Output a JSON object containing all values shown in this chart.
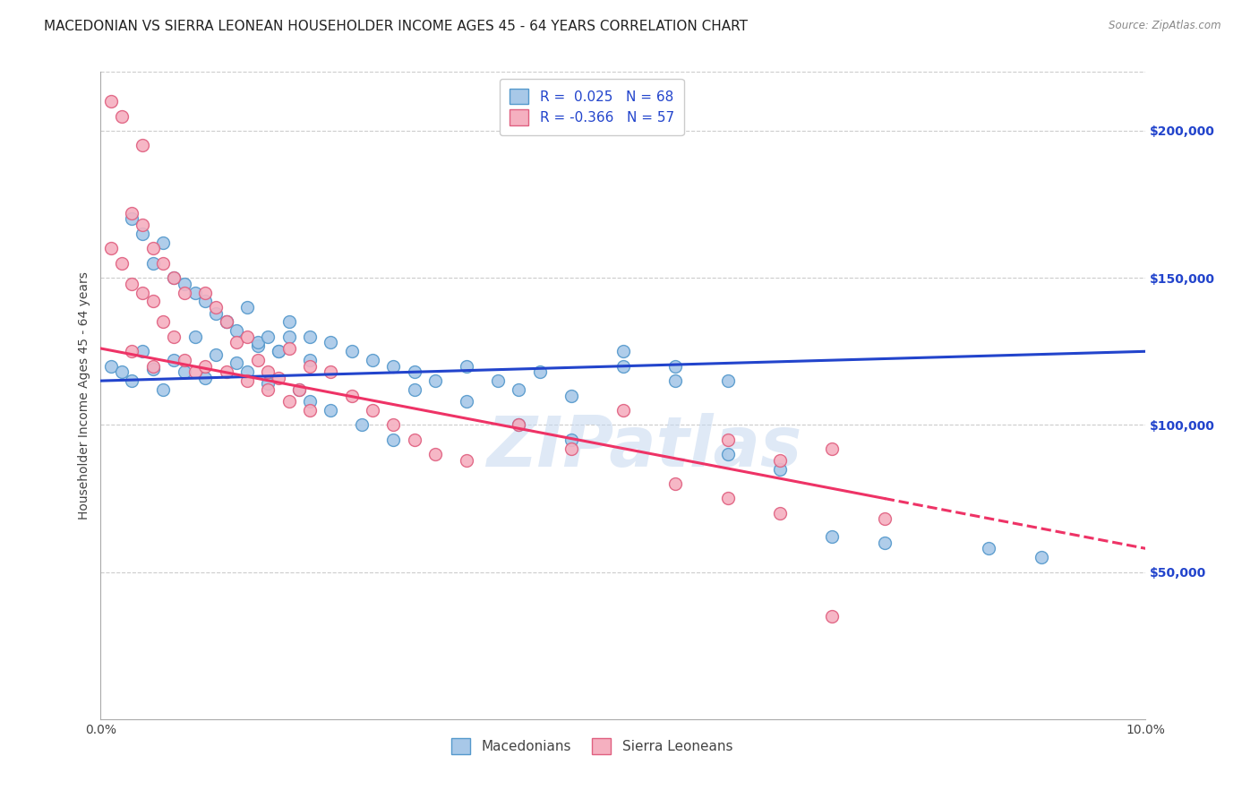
{
  "title": "MACEDONIAN VS SIERRA LEONEAN HOUSEHOLDER INCOME AGES 45 - 64 YEARS CORRELATION CHART",
  "source": "Source: ZipAtlas.com",
  "ylabel": "Householder Income Ages 45 - 64 years",
  "xlim": [
    0.0,
    0.1
  ],
  "ylim": [
    0,
    220000
  ],
  "ytick_vals": [
    50000,
    100000,
    150000,
    200000
  ],
  "ytick_labels": [
    "$50,000",
    "$100,000",
    "$150,000",
    "$200,000"
  ],
  "xticks": [
    0.0,
    0.02,
    0.04,
    0.06,
    0.08,
    0.1
  ],
  "xtick_labels": [
    "0.0%",
    "",
    "",
    "",
    "",
    "10.0%"
  ],
  "background_color": "#ffffff",
  "grid_color": "#cccccc",
  "macedonian_color": "#a8c8e8",
  "macedonian_edge_color": "#5599cc",
  "sierra_color": "#f5b0c0",
  "sierra_edge_color": "#e06080",
  "blue_line_color": "#2244cc",
  "pink_line_color": "#ee3366",
  "legend_color": "#2244cc",
  "watermark": "ZIPatlas",
  "title_fontsize": 11,
  "axis_label_fontsize": 10,
  "tick_fontsize": 10,
  "legend_fontsize": 11,
  "marker_size": 100,
  "line_width": 2.2,
  "macedonian_x": [
    0.001,
    0.002,
    0.003,
    0.004,
    0.005,
    0.006,
    0.007,
    0.008,
    0.009,
    0.01,
    0.011,
    0.012,
    0.013,
    0.014,
    0.015,
    0.016,
    0.017,
    0.018,
    0.019,
    0.02,
    0.003,
    0.004,
    0.005,
    0.006,
    0.007,
    0.008,
    0.009,
    0.01,
    0.011,
    0.012,
    0.013,
    0.014,
    0.015,
    0.016,
    0.017,
    0.018,
    0.02,
    0.022,
    0.024,
    0.026,
    0.028,
    0.03,
    0.032,
    0.035,
    0.038,
    0.04,
    0.042,
    0.045,
    0.05,
    0.055,
    0.06,
    0.02,
    0.022,
    0.025,
    0.028,
    0.03,
    0.035,
    0.04,
    0.045,
    0.05,
    0.055,
    0.06,
    0.065,
    0.07,
    0.075,
    0.085,
    0.09
  ],
  "macedonian_y": [
    120000,
    118000,
    115000,
    125000,
    119000,
    112000,
    122000,
    118000,
    130000,
    116000,
    124000,
    135000,
    121000,
    118000,
    127000,
    114000,
    125000,
    130000,
    112000,
    122000,
    170000,
    165000,
    155000,
    162000,
    150000,
    148000,
    145000,
    142000,
    138000,
    135000,
    132000,
    140000,
    128000,
    130000,
    125000,
    135000,
    130000,
    128000,
    125000,
    122000,
    120000,
    118000,
    115000,
    120000,
    115000,
    112000,
    118000,
    110000,
    125000,
    120000,
    115000,
    108000,
    105000,
    100000,
    95000,
    112000,
    108000,
    100000,
    95000,
    120000,
    115000,
    90000,
    85000,
    62000,
    60000,
    58000,
    55000
  ],
  "sierra_x": [
    0.001,
    0.002,
    0.003,
    0.004,
    0.005,
    0.006,
    0.007,
    0.008,
    0.009,
    0.01,
    0.011,
    0.012,
    0.013,
    0.014,
    0.015,
    0.016,
    0.017,
    0.018,
    0.019,
    0.02,
    0.003,
    0.004,
    0.005,
    0.006,
    0.007,
    0.008,
    0.01,
    0.012,
    0.014,
    0.016,
    0.018,
    0.02,
    0.022,
    0.024,
    0.026,
    0.028,
    0.03,
    0.032,
    0.035,
    0.04,
    0.045,
    0.05,
    0.055,
    0.06,
    0.065,
    0.07,
    0.001,
    0.002,
    0.003,
    0.004,
    0.005,
    0.06,
    0.065,
    0.07,
    0.075
  ],
  "sierra_y": [
    210000,
    205000,
    125000,
    195000,
    120000,
    135000,
    130000,
    122000,
    118000,
    145000,
    140000,
    135000,
    128000,
    130000,
    122000,
    118000,
    116000,
    126000,
    112000,
    120000,
    172000,
    168000,
    160000,
    155000,
    150000,
    145000,
    120000,
    118000,
    115000,
    112000,
    108000,
    105000,
    118000,
    110000,
    105000,
    100000,
    95000,
    90000,
    88000,
    100000,
    92000,
    105000,
    80000,
    95000,
    88000,
    92000,
    160000,
    155000,
    148000,
    145000,
    142000,
    75000,
    70000,
    35000,
    68000
  ]
}
